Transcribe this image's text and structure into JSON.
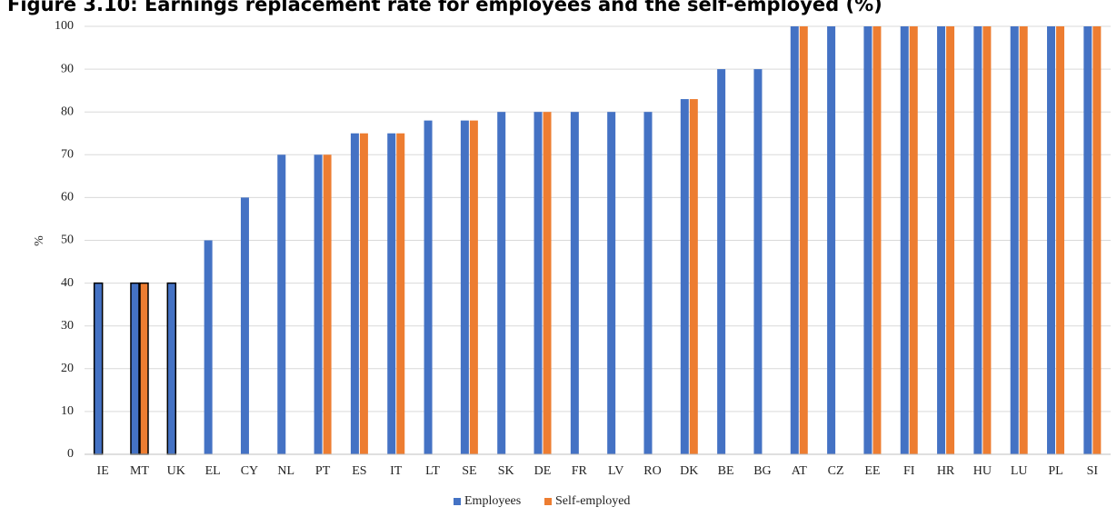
{
  "chart_data": {
    "type": "bar",
    "title": "Figure 3.10: Earnings replacement rate for employees and the self-employed (%)",
    "y_label": "%",
    "categories": [
      "IE",
      "MT",
      "UK",
      "EL",
      "CY",
      "NL",
      "PT",
      "ES",
      "IT",
      "LT",
      "SE",
      "SK",
      "DE",
      "FR",
      "LV",
      "RO",
      "DK",
      "BE",
      "BG",
      "AT",
      "CZ",
      "EE",
      "FI",
      "HR",
      "HU",
      "LU",
      "PL",
      "SI"
    ],
    "series": [
      {
        "name": "Employees",
        "color": "#4472c4",
        "values": [
          40,
          40,
          40,
          50,
          60,
          70,
          70,
          75,
          75,
          78,
          78,
          80,
          80,
          80,
          80,
          80,
          83,
          90,
          90,
          100,
          100,
          100,
          100,
          100,
          100,
          100,
          100,
          100
        ]
      },
      {
        "name": "Self-employed",
        "color": "#ed7d31",
        "values": [
          null,
          40,
          null,
          null,
          null,
          null,
          70,
          75,
          75,
          null,
          78,
          null,
          80,
          null,
          null,
          null,
          83,
          null,
          null,
          100,
          null,
          100,
          100,
          100,
          100,
          100,
          100,
          100
        ]
      }
    ],
    "outlined": [
      true,
      true,
      true,
      false,
      false,
      false,
      false,
      false,
      false,
      false,
      false,
      false,
      false,
      false,
      false,
      false,
      false,
      false,
      false,
      false,
      false,
      false,
      false,
      false,
      false,
      false,
      false,
      false
    ],
    "outline_color": "#000000",
    "ylim": [
      0,
      100
    ],
    "yticks": [
      0,
      10,
      20,
      30,
      40,
      50,
      60,
      70,
      80,
      90,
      100
    ],
    "grid": true,
    "legend": "bottom"
  }
}
